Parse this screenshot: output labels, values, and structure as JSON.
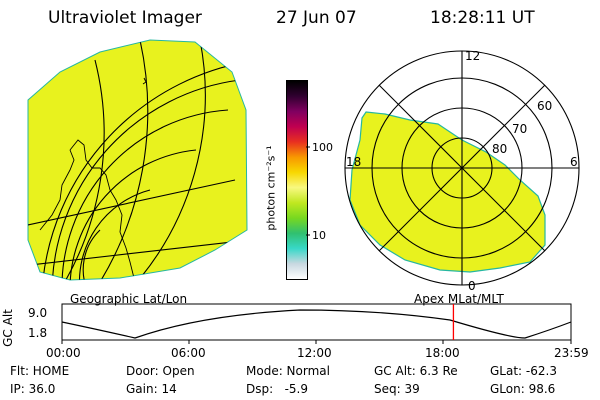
{
  "header": {
    "title": "Ultraviolet Imager",
    "date": "27 Jun 07",
    "time": "18:28:11 UT"
  },
  "colorbar": {
    "unit_label": "photon cm⁻²s⁻¹",
    "tick_100": "100",
    "tick_10": "10",
    "stops": [
      "#ffffff",
      "#c8d8e0",
      "#38d8c8",
      "#30c070",
      "#78d820",
      "#c0e820",
      "#f8f880",
      "#f8d800",
      "#f89800",
      "#e83020",
      "#c00050",
      "#800060",
      "#300030",
      "#000000"
    ]
  },
  "geo_panel": {
    "label": "Geographic Lat/Lon",
    "fill_color": "#e8f21e"
  },
  "polar_panel": {
    "label": "Apex MLat/MLT",
    "mlt_top": "12",
    "mlt_left": "18",
    "mlt_right": "6",
    "mlt_bottom": "0",
    "lat_60": "60",
    "lat_70": "70",
    "lat_80": "80",
    "fill_color": "#e8f21e"
  },
  "altitude_plot": {
    "ylabel": "GC Alt",
    "ytick_high": "9.0",
    "ytick_low": "1.8",
    "xticks": [
      "00:00",
      "06:00",
      "12:00",
      "18:00",
      "23:59"
    ],
    "marker_color": "#ff0000",
    "marker_fraction": 0.769
  },
  "info": {
    "flt": "Flt: HOME",
    "ip": "IP: 36.0",
    "door": "Door: Open",
    "gain": "Gain: 14",
    "mode": "Mode: Normal",
    "dsp": "Dsp:   -5.9",
    "gc_alt": "GC Alt: 6.3 Re",
    "seq": "Seq: 39",
    "glat": "GLat: -62.3",
    "glon": "GLon: 98.6"
  }
}
